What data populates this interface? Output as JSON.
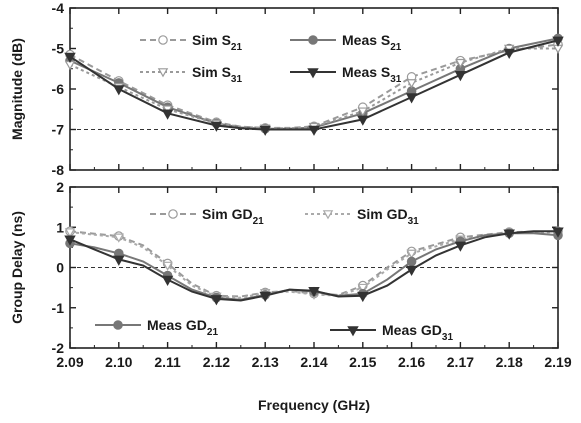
{
  "chart_data": [
    {
      "type": "line",
      "ylabel": "Magnitude (dB)",
      "xlabel": "",
      "xlim": [
        2.09,
        2.19
      ],
      "ylim": [
        -8,
        -4
      ],
      "yticks": [
        "-8",
        "-7",
        "-6",
        "-5",
        "-4"
      ],
      "reference_line": {
        "y": -7,
        "style": "dashed"
      },
      "legend": [
        {
          "label": "Sim S",
          "sub": "21",
          "series": 0
        },
        {
          "label": "Meas S",
          "sub": "21",
          "series": 1
        },
        {
          "label": "Sim S",
          "sub": "31",
          "series": 2
        },
        {
          "label": "Meas S",
          "sub": "31",
          "series": 3
        }
      ],
      "series": [
        {
          "name": "Sim S21",
          "color": "#9a9a9a",
          "dash": "6,4",
          "marker": "circle-open",
          "x": [
            2.09,
            2.1,
            2.11,
            2.12,
            2.125,
            2.13,
            2.135,
            2.14,
            2.15,
            2.16,
            2.17,
            2.18,
            2.19
          ],
          "y": [
            -5.15,
            -5.8,
            -6.4,
            -6.82,
            -6.93,
            -6.96,
            -6.96,
            -6.92,
            -6.45,
            -5.7,
            -5.3,
            -5.05,
            -4.9
          ]
        },
        {
          "name": "Meas S21",
          "color": "#777777",
          "dash": "",
          "marker": "circle-filled",
          "x": [
            2.09,
            2.1,
            2.11,
            2.12,
            2.125,
            2.13,
            2.135,
            2.14,
            2.15,
            2.16,
            2.17,
            2.18,
            2.19
          ],
          "y": [
            -5.3,
            -5.85,
            -6.45,
            -6.85,
            -6.95,
            -6.98,
            -6.98,
            -6.95,
            -6.6,
            -6.05,
            -5.5,
            -5.0,
            -4.75
          ]
        },
        {
          "name": "Sim S31",
          "color": "#9a9a9a",
          "dash": "3,3",
          "marker": "triangle-open",
          "x": [
            2.09,
            2.1,
            2.11,
            2.12,
            2.125,
            2.13,
            2.135,
            2.14,
            2.15,
            2.16,
            2.17,
            2.18,
            2.19
          ],
          "y": [
            -5.4,
            -5.95,
            -6.5,
            -6.85,
            -6.93,
            -6.97,
            -6.97,
            -6.93,
            -6.55,
            -5.85,
            -5.35,
            -5.0,
            -5.0
          ]
        },
        {
          "name": "Meas S31",
          "color": "#333333",
          "dash": "",
          "marker": "triangle-filled",
          "x": [
            2.09,
            2.1,
            2.11,
            2.12,
            2.125,
            2.13,
            2.135,
            2.14,
            2.15,
            2.16,
            2.17,
            2.18,
            2.19
          ],
          "y": [
            -5.2,
            -6.0,
            -6.6,
            -6.9,
            -6.97,
            -7.0,
            -7.0,
            -7.0,
            -6.75,
            -6.2,
            -5.65,
            -5.1,
            -4.8
          ]
        }
      ]
    },
    {
      "type": "line",
      "ylabel": "Group Delay (ns)",
      "xlabel": "Frequency (GHz)",
      "xlim": [
        2.09,
        2.19
      ],
      "ylim": [
        -2,
        2
      ],
      "yticks": [
        "-2",
        "-1",
        "0",
        "1",
        "2"
      ],
      "xticks": [
        "2.09",
        "2.10",
        "2.11",
        "2.12",
        "2.13",
        "2.14",
        "2.15",
        "2.16",
        "2.17",
        "2.18",
        "2.19"
      ],
      "reference_line": {
        "y": 0,
        "style": "dashed"
      },
      "legend": [
        {
          "label": "Sim GD",
          "sub": "21",
          "series": 0
        },
        {
          "label": "Sim GD",
          "sub": "31",
          "series": 1
        },
        {
          "label": "Meas GD",
          "sub": "21",
          "series": 2
        },
        {
          "label": "Meas GD",
          "sub": "31",
          "series": 3
        }
      ],
      "series": [
        {
          "name": "Sim GD21",
          "color": "#9a9a9a",
          "dash": "6,4",
          "marker": "circle-open",
          "x": [
            2.09,
            2.1,
            2.105,
            2.11,
            2.115,
            2.12,
            2.125,
            2.13,
            2.135,
            2.14,
            2.145,
            2.15,
            2.155,
            2.16,
            2.17,
            2.18,
            2.19
          ],
          "y": [
            0.9,
            0.78,
            0.55,
            0.1,
            -0.4,
            -0.7,
            -0.72,
            -0.62,
            -0.58,
            -0.65,
            -0.68,
            -0.45,
            0.0,
            0.4,
            0.75,
            0.88,
            0.9
          ]
        },
        {
          "name": "Sim GD31",
          "color": "#aaaaaa",
          "dash": "3,3",
          "marker": "triangle-open",
          "x": [
            2.09,
            2.1,
            2.105,
            2.11,
            2.115,
            2.12,
            2.125,
            2.13,
            2.135,
            2.14,
            2.145,
            2.15,
            2.155,
            2.16,
            2.17,
            2.18,
            2.19
          ],
          "y": [
            0.88,
            0.75,
            0.5,
            0.05,
            -0.45,
            -0.72,
            -0.75,
            -0.63,
            -0.6,
            -0.67,
            -0.7,
            -0.5,
            -0.05,
            0.35,
            0.7,
            0.85,
            0.88
          ]
        },
        {
          "name": "Meas GD21",
          "color": "#777777",
          "dash": "",
          "marker": "circle-filled",
          "x": [
            2.09,
            2.095,
            2.1,
            2.105,
            2.11,
            2.115,
            2.12,
            2.125,
            2.13,
            2.135,
            2.14,
            2.145,
            2.15,
            2.155,
            2.16,
            2.165,
            2.17,
            2.175,
            2.18,
            2.185,
            2.19
          ],
          "y": [
            0.6,
            0.5,
            0.35,
            0.15,
            -0.2,
            -0.55,
            -0.75,
            -0.8,
            -0.68,
            -0.55,
            -0.6,
            -0.7,
            -0.65,
            -0.3,
            0.15,
            0.45,
            0.65,
            0.8,
            0.85,
            0.85,
            0.8
          ]
        },
        {
          "name": "Meas GD31",
          "color": "#333333",
          "dash": "",
          "marker": "triangle-filled",
          "x": [
            2.09,
            2.095,
            2.1,
            2.105,
            2.11,
            2.115,
            2.12,
            2.125,
            2.13,
            2.135,
            2.14,
            2.145,
            2.15,
            2.155,
            2.16,
            2.165,
            2.17,
            2.175,
            2.18,
            2.185,
            2.19
          ],
          "y": [
            0.7,
            0.45,
            0.2,
            0.05,
            -0.3,
            -0.6,
            -0.78,
            -0.82,
            -0.7,
            -0.55,
            -0.58,
            -0.72,
            -0.7,
            -0.45,
            -0.05,
            0.3,
            0.55,
            0.75,
            0.85,
            0.9,
            0.9
          ]
        }
      ]
    }
  ]
}
